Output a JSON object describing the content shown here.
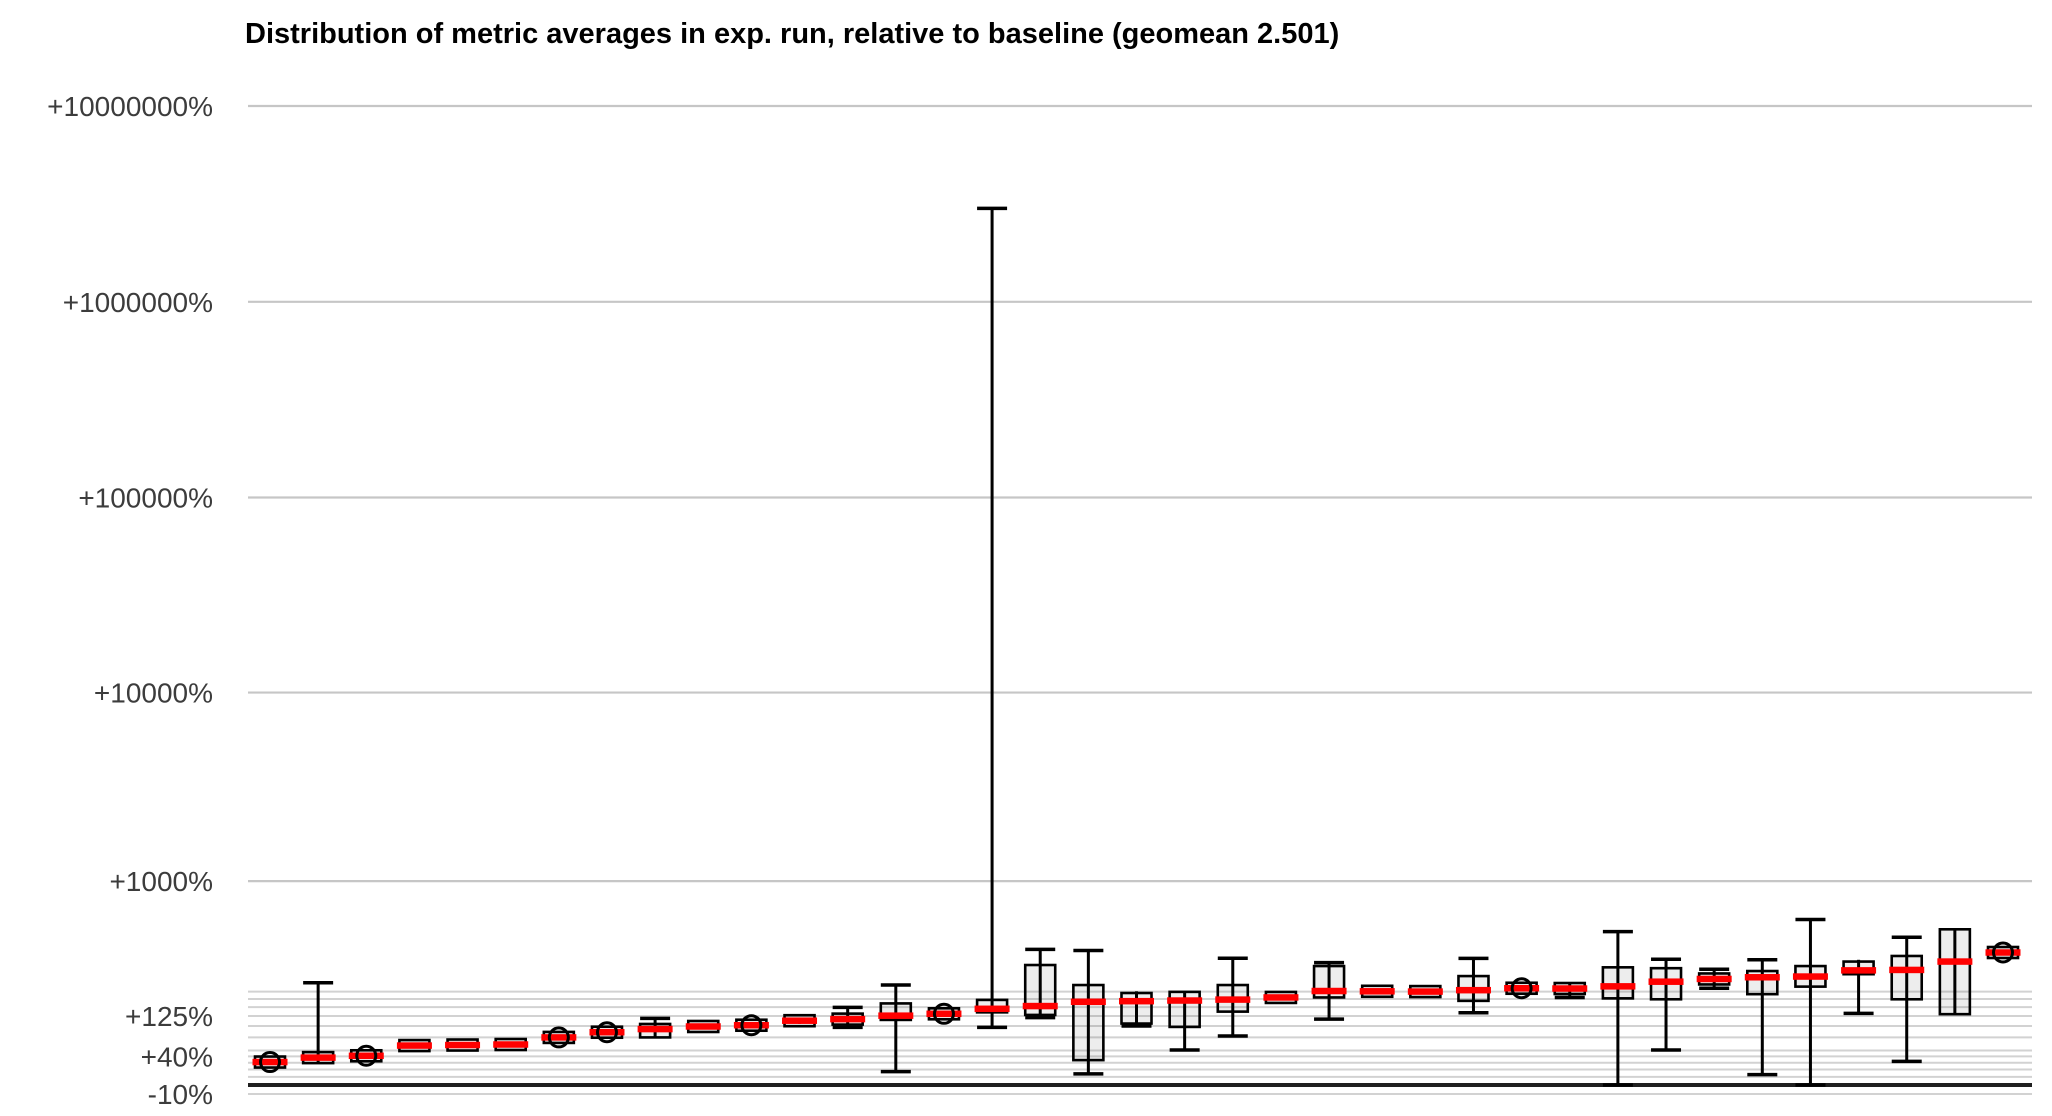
{
  "chart_data": {
    "type": "boxplot",
    "title": "Distribution of metric averages in exp. run, relative to baseline (geomean 2.501)",
    "geomean": 2.501,
    "y_axis": {
      "scale": "log10(1 + percent/100)",
      "unit": "%",
      "ticks": [
        {
          "label": "+10000000%",
          "value": 10000000
        },
        {
          "label": "+1000000%",
          "value": 1000000
        },
        {
          "label": "+100000%",
          "value": 100000
        },
        {
          "label": "+10000%",
          "value": 10000
        },
        {
          "label": "+1000%",
          "value": 1000
        },
        {
          "label": "+125%",
          "value": 125
        },
        {
          "label": "+40%",
          "value": 40
        },
        {
          "label": "-10%",
          "value": -10
        }
      ],
      "major_grid_values": [
        10000000,
        1000000,
        100000,
        10000,
        1000
      ],
      "minor_grid_values": [
        200,
        175,
        150,
        125,
        100,
        75,
        50,
        40,
        30,
        20,
        10,
        -10
      ],
      "baseline_value": 0
    },
    "x_axis": {
      "labels_shown": false
    },
    "legend": {
      "shown": false
    },
    "grid": true,
    "colors": {
      "major_grid": "#c6c6c6",
      "minor_grid": "#d2d2d2",
      "baseline": "#1f1f1f",
      "box_border": "#000000",
      "box_fill": "rgba(0,0,0,0.07)",
      "median": "#ff0000",
      "whisker": "#000000",
      "tick_label": "#3c3c3c",
      "background": "#ffffff"
    },
    "boxes": [
      {
        "lo": 28,
        "q1": 29,
        "med": 31,
        "q3": 33,
        "hi": 34,
        "dot": true
      },
      {
        "lo": 29,
        "q1": 31,
        "med": 38,
        "q3": 47,
        "hi": 233,
        "dot": false
      },
      {
        "lo": 39,
        "q1": 40,
        "med": 41,
        "q3": 43,
        "hi": 44,
        "dot": true
      },
      {
        "lo": 56,
        "q1": 57,
        "med": 59,
        "q3": 61,
        "hi": 62,
        "dot": false
      },
      {
        "lo": 57,
        "q1": 58,
        "med": 60,
        "q3": 62,
        "hi": 63,
        "dot": false
      },
      {
        "lo": 58,
        "q1": 59,
        "med": 61,
        "q3": 63,
        "hi": 64,
        "dot": false
      },
      {
        "lo": 73,
        "q1": 74,
        "med": 75,
        "q3": 77,
        "hi": 78,
        "dot": true
      },
      {
        "lo": 84,
        "q1": 85,
        "med": 86,
        "q3": 88,
        "hi": 89,
        "dot": true
      },
      {
        "lo": 73,
        "q1": 75,
        "med": 93,
        "q3": 105,
        "hi": 119,
        "dot": false
      },
      {
        "lo": 94,
        "q1": 95,
        "med": 99,
        "q3": 104,
        "hi": 105,
        "dot": false
      },
      {
        "lo": 100,
        "q1": 101,
        "med": 102,
        "q3": 104,
        "hi": 105,
        "dot": true
      },
      {
        "lo": 105,
        "q1": 107,
        "med": 113,
        "q3": 119,
        "hi": 121,
        "dot": false
      },
      {
        "lo": 97,
        "q1": 100,
        "med": 117,
        "q3": 125,
        "hi": 149,
        "dot": false
      },
      {
        "lo": 17,
        "q1": 115,
        "med": 126,
        "q3": 161,
        "hi": 224,
        "dot": false
      },
      {
        "lo": 129,
        "q1": 130,
        "med": 131,
        "q3": 133,
        "hi": 134,
        "dot": true
      },
      {
        "lo": 97,
        "q1": 135,
        "med": 145,
        "q3": 172,
        "hi": 3000000,
        "dot": false
      },
      {
        "lo": 121,
        "q1": 128,
        "med": 153,
        "q3": 310,
        "hi": 393,
        "dot": false
      },
      {
        "lo": 14,
        "q1": 34,
        "med": 166,
        "q3": 224,
        "hi": 386,
        "dot": false
      },
      {
        "lo": 100,
        "q1": 106,
        "med": 168,
        "q3": 195,
        "hi": 201,
        "dot": false
      },
      {
        "lo": 51,
        "q1": 98,
        "med": 170,
        "q3": 199,
        "hi": 201,
        "dot": false
      },
      {
        "lo": 78,
        "q1": 137,
        "med": 173,
        "q3": 224,
        "hi": 344,
        "dot": false
      },
      {
        "lo": 178,
        "q1": 179,
        "med": 180,
        "q3": 182,
        "hi": 183,
        "dot": false
      },
      {
        "lo": 117,
        "q1": 180,
        "med": 202,
        "q3": 305,
        "hi": 322,
        "dot": false
      },
      {
        "lo": 199,
        "q1": 200,
        "med": 201,
        "q3": 203,
        "hi": 204,
        "dot": false
      },
      {
        "lo": 194,
        "q1": 196,
        "med": 200,
        "q3": 205,
        "hi": 207,
        "dot": false
      },
      {
        "lo": 134,
        "q1": 169,
        "med": 205,
        "q3": 260,
        "hi": 343,
        "dot": false
      },
      {
        "lo": 210,
        "q1": 211,
        "med": 212,
        "q3": 214,
        "hi": 215,
        "dot": true
      },
      {
        "lo": 180,
        "q1": 193,
        "med": 211,
        "q3": 227,
        "hi": 231,
        "dot": false
      },
      {
        "lo": 0,
        "q1": 177,
        "med": 219,
        "q3": 299,
        "hi": 507,
        "dot": false
      },
      {
        "lo": 51,
        "q1": 174,
        "med": 237,
        "q3": 295,
        "hi": 339,
        "dot": false
      },
      {
        "lo": 212,
        "q1": 228,
        "med": 248,
        "q3": 269,
        "hi": 290,
        "dot": false
      },
      {
        "lo": 13,
        "q1": 191,
        "med": 255,
        "q3": 282,
        "hi": 336,
        "dot": false
      },
      {
        "lo": 0,
        "q1": 218,
        "med": 258,
        "q3": 305,
        "hi": 600,
        "dot": false
      },
      {
        "lo": 132,
        "q1": 268,
        "med": 285,
        "q3": 327,
        "hi": 336,
        "dot": false
      },
      {
        "lo": 32,
        "q1": 174,
        "med": 287,
        "q3": 356,
        "hi": 468,
        "dot": false
      },
      {
        "lo": 130,
        "q1": 130,
        "med": 327,
        "q3": 524,
        "hi": 524,
        "dot": false
      },
      {
        "lo": 372,
        "q1": 373,
        "med": 375,
        "q3": 377,
        "hi": 378,
        "dot": true
      }
    ]
  }
}
